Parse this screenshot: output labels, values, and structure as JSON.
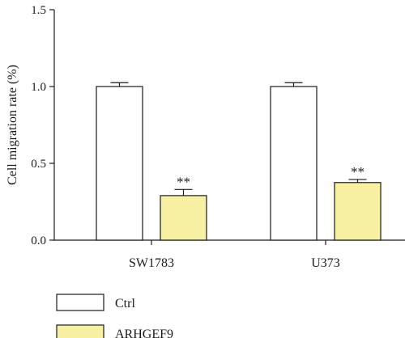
{
  "chart_data": {
    "type": "bar",
    "title": "",
    "xlabel": "",
    "ylabel": "Cell migration rate (%)",
    "ylim": [
      0,
      1.5
    ],
    "yticks": [
      "0.0",
      "0.5",
      "1.0",
      "1.5"
    ],
    "categories": [
      "SW1783",
      "U373"
    ],
    "series": [
      {
        "name": "Ctrl",
        "values": [
          1.0,
          1.0
        ],
        "errors": [
          0.025,
          0.025
        ],
        "annotations": [
          "",
          ""
        ],
        "color": "#ffffff"
      },
      {
        "name": "ARHGEF9",
        "values": [
          0.29,
          0.375
        ],
        "errors": [
          0.04,
          0.02
        ],
        "annotations": [
          "**",
          "**"
        ],
        "color": "#f7f0a3"
      }
    ],
    "grid": false,
    "legend_position": "bottom-left"
  }
}
